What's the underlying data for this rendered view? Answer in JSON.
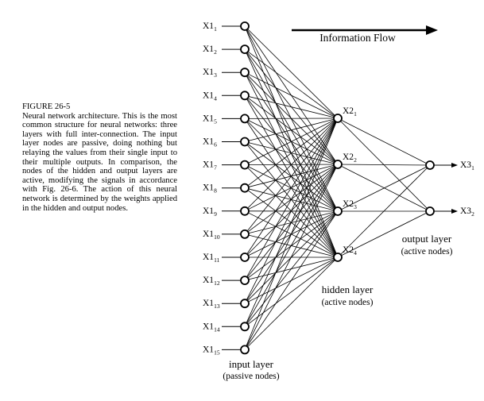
{
  "caption": {
    "figure_label": "FIGURE 26-5",
    "text": "Neural network architecture. This is the most common structure for neural networks: three layers with full inter-connection. The input layer nodes are passive, doing nothing but relaying the values from their single input to their multiple outputs. In comparison, the nodes of the hidden and output layers are active, modifying the signals in accordance with Fig. 26-6. The action of this neural network is determined by the weights applied in the hidden and output nodes."
  },
  "diagram": {
    "flow_label": "Information Flow",
    "input_nodes": [
      {
        "base": "X1",
        "sub": "1"
      },
      {
        "base": "X1",
        "sub": "2"
      },
      {
        "base": "X1",
        "sub": "3"
      },
      {
        "base": "X1",
        "sub": "4"
      },
      {
        "base": "X1",
        "sub": "5"
      },
      {
        "base": "X1",
        "sub": "6"
      },
      {
        "base": "X1",
        "sub": "7"
      },
      {
        "base": "X1",
        "sub": "8"
      },
      {
        "base": "X1",
        "sub": "9"
      },
      {
        "base": "X1",
        "sub": "10"
      },
      {
        "base": "X1",
        "sub": "11"
      },
      {
        "base": "X1",
        "sub": "12"
      },
      {
        "base": "X1",
        "sub": "13"
      },
      {
        "base": "X1",
        "sub": "14"
      },
      {
        "base": "X1",
        "sub": "15"
      }
    ],
    "hidden_nodes": [
      {
        "base": "X2",
        "sub": "1"
      },
      {
        "base": "X2",
        "sub": "2"
      },
      {
        "base": "X2",
        "sub": "3"
      },
      {
        "base": "X2",
        "sub": "4"
      }
    ],
    "output_nodes": [
      {
        "base": "X3",
        "sub": "1"
      },
      {
        "base": "X3",
        "sub": "2"
      }
    ],
    "input_layer": {
      "title": "input layer",
      "subtitle": "(passive nodes)"
    },
    "hidden_layer": {
      "title": "hidden layer",
      "subtitle": "(active nodes)"
    },
    "output_layer": {
      "title": "output layer",
      "subtitle": "(active nodes)"
    }
  }
}
